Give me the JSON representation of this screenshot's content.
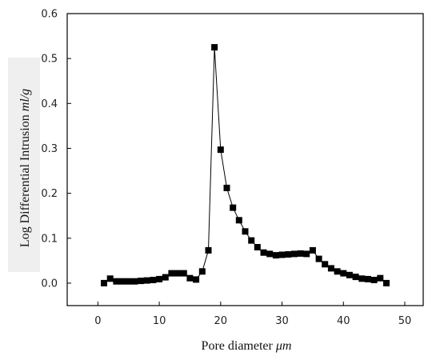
{
  "chart_data": {
    "type": "line",
    "title": "",
    "xlabel": {
      "text": "Pore diameter ",
      "unit": "μm"
    },
    "ylabel": {
      "text": "Log Differential Intrusion ",
      "unit": "ml/g"
    },
    "xlim": [
      -5,
      53
    ],
    "ylim": [
      -0.05,
      0.6
    ],
    "xticks": [
      0,
      10,
      20,
      30,
      40,
      50
    ],
    "xtick_labels": [
      "0",
      "10",
      "20",
      "30",
      "40",
      "50"
    ],
    "yticks": [
      0.0,
      0.1,
      0.2,
      0.3,
      0.4,
      0.5,
      0.6
    ],
    "ytick_labels": [
      "0.0",
      "0.1",
      "0.2",
      "0.3",
      "0.4",
      "0.5",
      "0.6"
    ],
    "grid": false,
    "legend": "none",
    "marker": "square",
    "color": "#000000",
    "series": [
      {
        "x": [
          1,
          2,
          3,
          4,
          5,
          6,
          7,
          8,
          9,
          10,
          11,
          12,
          13,
          14,
          15,
          16,
          17,
          18,
          19,
          20,
          21,
          22,
          23,
          24,
          25,
          26,
          27,
          28,
          29,
          30,
          31,
          32,
          33,
          34,
          35,
          36,
          37,
          38,
          39,
          40,
          41,
          42,
          43,
          44,
          45,
          46,
          47
        ],
        "y": [
          0.0,
          0.01,
          0.004,
          0.004,
          0.004,
          0.004,
          0.005,
          0.006,
          0.007,
          0.009,
          0.013,
          0.022,
          0.022,
          0.022,
          0.011,
          0.008,
          0.026,
          0.073,
          0.525,
          0.297,
          0.212,
          0.168,
          0.14,
          0.115,
          0.095,
          0.08,
          0.068,
          0.065,
          0.062,
          0.063,
          0.064,
          0.065,
          0.066,
          0.065,
          0.073,
          0.054,
          0.042,
          0.033,
          0.026,
          0.022,
          0.018,
          0.014,
          0.01,
          0.009,
          0.007,
          0.011,
          0.0
        ]
      }
    ]
  }
}
